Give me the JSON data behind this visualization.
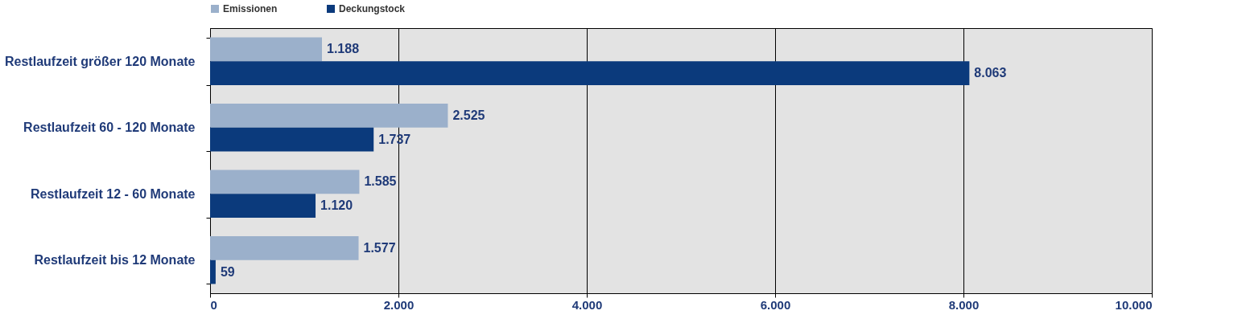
{
  "chart_data": {
    "type": "bar",
    "orientation": "horizontal",
    "categories": [
      "Restlaufzeit größer 120 Monate",
      "Restlaufzeit 60 - 120 Monate",
      "Restlaufzeit 12 - 60 Monate",
      "Restlaufzeit bis 12 Monate"
    ],
    "series": [
      {
        "name": "Emissionen",
        "color": "#9bb0cb",
        "values": [
          1188,
          2525,
          1585,
          1577
        ],
        "value_labels": [
          "1.188",
          "2.525",
          "1.585",
          "1.577"
        ]
      },
      {
        "name": "Deckungstock",
        "color": "#0b3a7c",
        "values": [
          8063,
          1737,
          1120,
          59
        ],
        "value_labels": [
          "8.063",
          "1.737",
          "1.120",
          "59"
        ]
      }
    ],
    "xlim": [
      0,
      10000
    ],
    "xticks": [
      {
        "value": 0,
        "label": "0"
      },
      {
        "value": 2000,
        "label": "2.000"
      },
      {
        "value": 4000,
        "label": "4.000"
      },
      {
        "value": 6000,
        "label": "6.000"
      },
      {
        "value": 8000,
        "label": "8.000"
      },
      {
        "value": 10000,
        "label": "10.000"
      }
    ],
    "grid": "x",
    "legend": "top"
  }
}
